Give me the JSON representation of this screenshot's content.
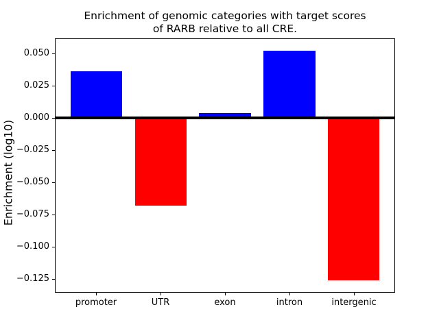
{
  "chart_data": {
    "type": "bar",
    "title": "Enrichment of genomic categories with target scores of RARB relative to all CRE.",
    "title_lines": [
      "Enrichment of genomic categories with target scores",
      "of RARB relative to all CRE."
    ],
    "ylabel": "Enrichment (log10)",
    "categories": [
      "promoter",
      "UTR",
      "exon",
      "intron",
      "intergenic"
    ],
    "values": [
      0.036,
      -0.068,
      0.004,
      0.052,
      -0.126
    ],
    "bar_colors": [
      "#0000ff",
      "#ff0000",
      "#0000ff",
      "#0000ff",
      "#ff0000"
    ],
    "positive_color": "#0000ff",
    "negative_color": "#ff0000",
    "yticks": [
      0.05,
      0.025,
      0.0,
      -0.025,
      -0.05,
      -0.075,
      -0.1,
      -0.125
    ],
    "ytick_labels": [
      "0.050",
      "0.025",
      "0.000",
      "−0.025",
      "−0.050",
      "−0.075",
      "−0.100",
      "−0.125"
    ],
    "ylim": [
      -0.1356,
      0.0617
    ],
    "xlim": [
      -0.64,
      4.64
    ],
    "bar_width_fraction": 0.8,
    "grid": false,
    "zero_line": true,
    "axis_color": "#000000",
    "background_color": "#ffffff",
    "legend_position": "none"
  }
}
